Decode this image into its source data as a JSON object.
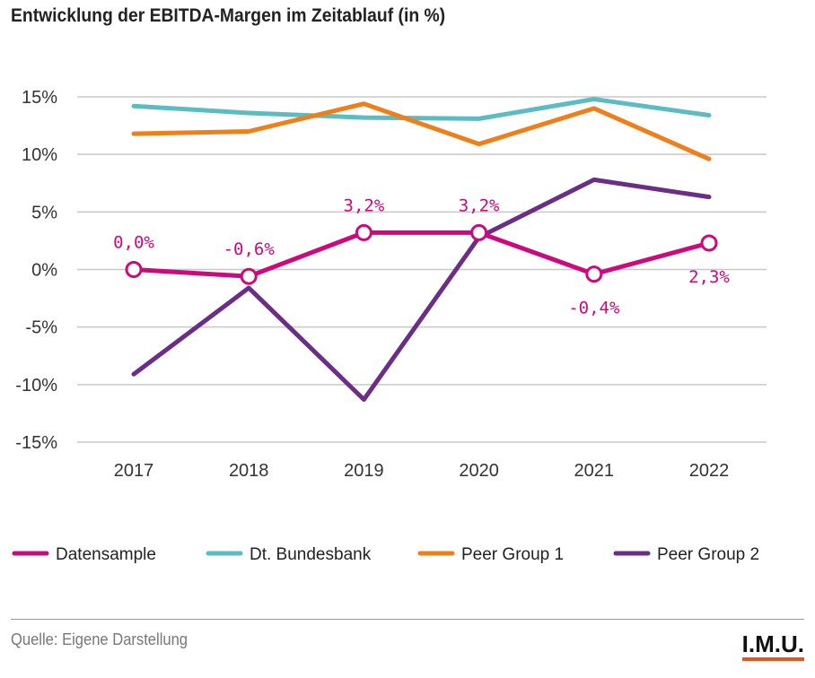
{
  "title": "Entwicklung der EBITDA-Margen im Zeitablauf (in %)",
  "source": "Quelle: Eigene Darstellung",
  "logo": "I.M.U.",
  "colors": {
    "Datensample": "#cc0a7e",
    "Dt. Bundesbank": "#5bbcc4",
    "Peer Group 1": "#ef7f1a",
    "Peer Group 2": "#6b2d86",
    "grid": "#c8c8c8",
    "logo_accent": "#e8541e"
  },
  "chart_data": {
    "type": "line",
    "x": [
      "2017",
      "2018",
      "2019",
      "2020",
      "2021",
      "2022"
    ],
    "y_ticks": [
      "15%",
      "10%",
      "5%",
      "0%",
      "-5%",
      "-10%",
      "-15%"
    ],
    "ylim": [
      -15,
      15
    ],
    "grid": true,
    "legend_position": "bottom",
    "series": [
      {
        "name": "Datensample",
        "values": [
          0.0,
          -0.6,
          3.2,
          3.2,
          -0.4,
          2.3
        ],
        "labels": [
          "0,0%",
          "-0,6%",
          "3,2%",
          "3,2%",
          "-0,4%",
          "2,3%"
        ],
        "markers": true
      },
      {
        "name": "Dt. Bundesbank",
        "values": [
          14.2,
          13.6,
          13.2,
          13.1,
          14.8,
          13.4
        ]
      },
      {
        "name": "Peer Group 1",
        "values": [
          11.8,
          12.0,
          14.4,
          10.9,
          14.0,
          9.6
        ]
      },
      {
        "name": "Peer Group 2",
        "values": [
          -9.1,
          -1.6,
          -11.3,
          2.8,
          7.8,
          6.3
        ]
      }
    ],
    "legend": [
      {
        "name": "Datensample",
        "label": "Datensample"
      },
      {
        "name": "Dt. Bundesbank",
        "label": "Dt. Bundesbank"
      },
      {
        "name": "Peer Group 1",
        "label": "Peer Group 1"
      },
      {
        "name": "Peer Group 2",
        "label": "Peer Group 2"
      }
    ]
  }
}
